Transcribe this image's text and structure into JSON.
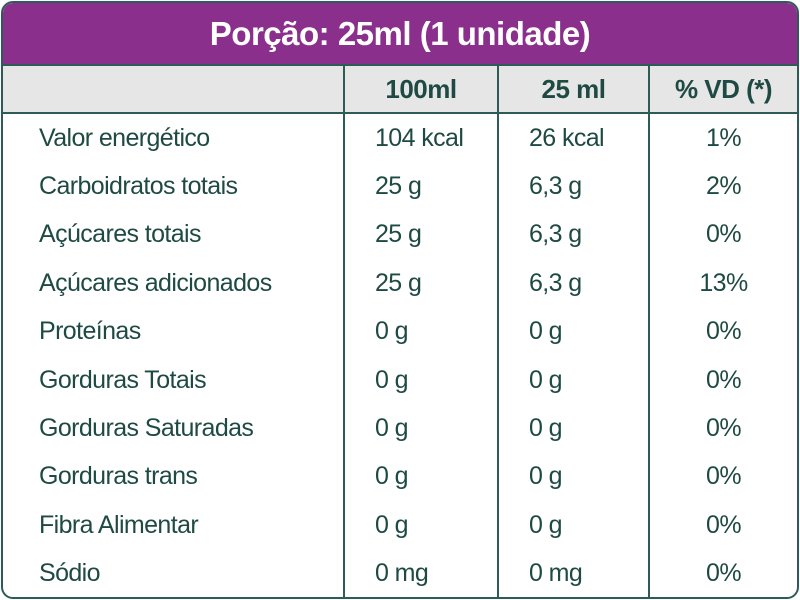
{
  "header": {
    "title": "Porção: 25ml (1 unidade)"
  },
  "table": {
    "columns": [
      "100ml",
      "25 ml",
      "% VD (*)"
    ],
    "rows": [
      [
        "Valor energético",
        "104 kcal",
        "26 kcal",
        "1%"
      ],
      [
        "Carboidratos totais",
        "25 g",
        "6,3 g",
        "2%"
      ],
      [
        "Açúcares totais",
        "25 g",
        "6,3 g",
        "0%"
      ],
      [
        "Açúcares adicionados",
        "25 g",
        "6,3 g",
        "13%"
      ],
      [
        "Proteínas",
        "0 g",
        "0 g",
        "0%"
      ],
      [
        "Gorduras Totais",
        "0 g",
        "0 g",
        "0%"
      ],
      [
        "Gorduras Saturadas",
        "0 g",
        "0 g",
        "0%"
      ],
      [
        "Gorduras trans",
        "0 g",
        "0 g",
        "0%"
      ],
      [
        "Fibra Alimentar",
        "0 g",
        "0 g",
        "0%"
      ],
      [
        "Sódio",
        "0 mg",
        "0 mg",
        "0%"
      ]
    ]
  }
}
